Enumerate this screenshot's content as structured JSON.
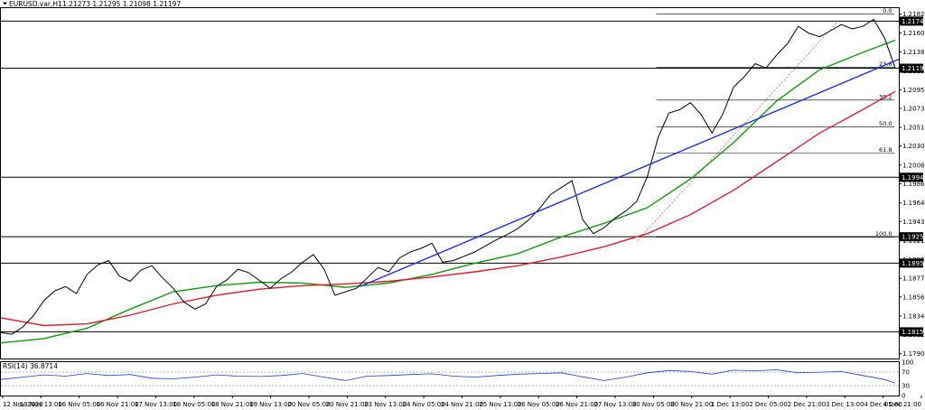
{
  "header": {
    "symbol_text": "EURUSD.var,H1",
    "ohlc_text": "1.21273 1.21295 1.21098 1.21197"
  },
  "rsi_header": {
    "text": "RSI(14) 36.8714"
  },
  "chart_data": {
    "type": "line",
    "title": "EURUSD.var,H1",
    "x_tick_labels": [
      "12 Nov 2020",
      "13 Nov 13:00",
      "16 Nov 05:00",
      "16 Nov 21:00",
      "17 Nov 13:00",
      "18 Nov 05:00",
      "18 Nov 21:00",
      "19 Nov 13:00",
      "20 Nov 05:00",
      "20 Nov 21:00",
      "23 Nov 13:00",
      "24 Nov 05:00",
      "24 Nov 21:00",
      "25 Nov 13:00",
      "26 Nov 05:00",
      "26 Nov 21:00",
      "27 Nov 13:00",
      "30 Nov 05:00",
      "30 Nov 21:00",
      "1 Dec 13:00",
      "2 Dec 05:00",
      "2 Dec 21:00",
      "3 Dec 13:00",
      "4 Dec 05:00",
      "4 Dec 21:00"
    ],
    "y_tick_labels": [
      "1.21820",
      "1.21605",
      "1.21385",
      "1.21165",
      "1.20950",
      "1.20735",
      "1.20515",
      "1.20300",
      "1.20080",
      "1.19865",
      "1.19645",
      "1.19430",
      "1.19210",
      "1.18990",
      "1.18775",
      "1.18560",
      "1.18340",
      "1.18125",
      "1.17905"
    ],
    "ylim": [
      1.1785,
      1.2189
    ],
    "price": {
      "name": "EURUSD.var H1",
      "x": [
        0,
        24,
        48,
        72,
        96,
        120,
        144,
        168,
        192,
        216,
        240,
        264,
        288,
        312,
        336,
        360,
        384,
        408,
        432,
        456,
        480,
        504,
        528,
        552,
        576,
        600,
        624,
        648,
        672,
        696,
        720,
        744,
        768,
        792,
        816,
        840,
        864,
        888,
        912,
        936,
        960,
        984,
        1008,
        1032,
        1056,
        1080,
        1104,
        1128,
        1152,
        1176,
        1200,
        1224,
        1248,
        1272,
        1296,
        1320,
        1344,
        1368,
        1392,
        1416,
        1440,
        1464,
        1488,
        1512,
        1536,
        1560,
        1584,
        1608,
        1632,
        1656,
        1680,
        1704,
        1728,
        1752,
        1776,
        1800,
        1824,
        1848,
        1872,
        1896,
        1920,
        1944,
        1968,
        1992
      ],
      "y": [
        1.1815,
        1.1813,
        1.1821,
        1.1834,
        1.1852,
        1.1863,
        1.1868,
        1.186,
        1.1882,
        1.1893,
        1.1898,
        1.188,
        1.1874,
        1.1887,
        1.1892,
        1.1878,
        1.1866,
        1.185,
        1.1842,
        1.1848,
        1.1868,
        1.1876,
        1.1888,
        1.1884,
        1.1875,
        1.1866,
        1.1877,
        1.1885,
        1.1896,
        1.1905,
        1.1888,
        1.1858,
        1.1862,
        1.1866,
        1.1878,
        1.189,
        1.1885,
        1.1901,
        1.1908,
        1.1912,
        1.1918,
        1.1896,
        1.1898,
        1.1903,
        1.1908,
        1.1915,
        1.1922,
        1.1928,
        1.1935,
        1.1945,
        1.1958,
        1.1974,
        1.1982,
        1.199,
        1.1945,
        1.1929,
        1.1936,
        1.1947,
        1.1955,
        1.1966,
        1.1995,
        1.204,
        1.2068,
        1.2072,
        1.208,
        1.2066,
        1.2045,
        1.2067,
        1.2098,
        1.211,
        1.2125,
        1.212,
        1.2135,
        1.2148,
        1.2168,
        1.216,
        1.2156,
        1.2163,
        1.217,
        1.2165,
        1.2168,
        1.2176,
        1.2155,
        1.212
      ]
    },
    "series": [
      {
        "name": "",
        "color": "#0d9c0d",
        "x": [
          0,
          96,
          192,
          288,
          384,
          480,
          576,
          672,
          768,
          864,
          960,
          1056,
          1152,
          1248,
          1344,
          1440,
          1536,
          1632,
          1728,
          1824,
          1920,
          1992
        ],
        "y": [
          1.1803,
          1.1808,
          1.182,
          1.1842,
          1.1862,
          1.1869,
          1.1873,
          1.1872,
          1.1867,
          1.1872,
          1.1882,
          1.1895,
          1.1906,
          1.1925,
          1.1941,
          1.1959,
          1.1992,
          1.2034,
          1.2082,
          1.2118,
          1.2138,
          1.2152
        ]
      },
      {
        "name": "",
        "color": "#dc1e32",
        "x": [
          0,
          96,
          192,
          288,
          384,
          480,
          576,
          672,
          768,
          864,
          960,
          1056,
          1152,
          1248,
          1344,
          1440,
          1536,
          1632,
          1728,
          1824,
          1920,
          1992
        ],
        "y": [
          1.1832,
          1.1823,
          1.1825,
          1.1835,
          1.1848,
          1.1858,
          1.1865,
          1.1869,
          1.1871,
          1.1874,
          1.1879,
          1.1885,
          1.1892,
          1.1902,
          1.1914,
          1.1929,
          1.1951,
          1.1979,
          1.2012,
          1.2045,
          1.2072,
          1.2093
        ]
      }
    ],
    "trendline": {
      "color": "#1a2ee6",
      "x": [
        800,
        2000
      ],
      "y": [
        1.1868,
        1.213
      ]
    },
    "fibonacci": {
      "range_y": [
        1.1921,
        1.2174
      ],
      "levels": [
        {
          "label": "0.0",
          "value": 1.2182
        },
        {
          "label": "23.6",
          "value": 1.2121
        },
        {
          "label": "38.2",
          "value": 1.2083
        },
        {
          "label": "50.0",
          "value": 1.2052
        },
        {
          "label": "61.8",
          "value": 1.2022
        },
        {
          "label": "100.0",
          "value": 1.1925
        }
      ]
    },
    "horizontal_levels": [
      {
        "value": 1.2174,
        "label": "1.21740"
      },
      {
        "value": 1.21197,
        "label": "1.21197"
      },
      {
        "value": 1.1994,
        "label": "1.19940"
      },
      {
        "value": 1.19254,
        "label": "1.19254"
      },
      {
        "value": 1.1895,
        "label": "1.18950"
      },
      {
        "value": 1.18158,
        "label": "1.18158"
      }
    ],
    "rsi": {
      "name": "RSI(14)",
      "current": 36.8714,
      "levels": [
        100,
        70,
        30,
        0
      ],
      "ylim": [
        0,
        100
      ],
      "x": [
        0,
        48,
        96,
        144,
        192,
        240,
        288,
        336,
        384,
        432,
        480,
        528,
        576,
        624,
        672,
        720,
        768,
        816,
        864,
        912,
        960,
        1008,
        1056,
        1104,
        1152,
        1200,
        1248,
        1296,
        1344,
        1392,
        1440,
        1488,
        1536,
        1584,
        1632,
        1680,
        1728,
        1776,
        1824,
        1872,
        1920,
        1968,
        1992
      ],
      "y": [
        48,
        55,
        62,
        58,
        66,
        60,
        63,
        52,
        50,
        55,
        62,
        58,
        57,
        60,
        66,
        55,
        45,
        58,
        60,
        63,
        65,
        58,
        55,
        60,
        64,
        66,
        68,
        56,
        45,
        55,
        68,
        75,
        72,
        64,
        76,
        74,
        77,
        68,
        70,
        72,
        60,
        48,
        37
      ]
    }
  }
}
